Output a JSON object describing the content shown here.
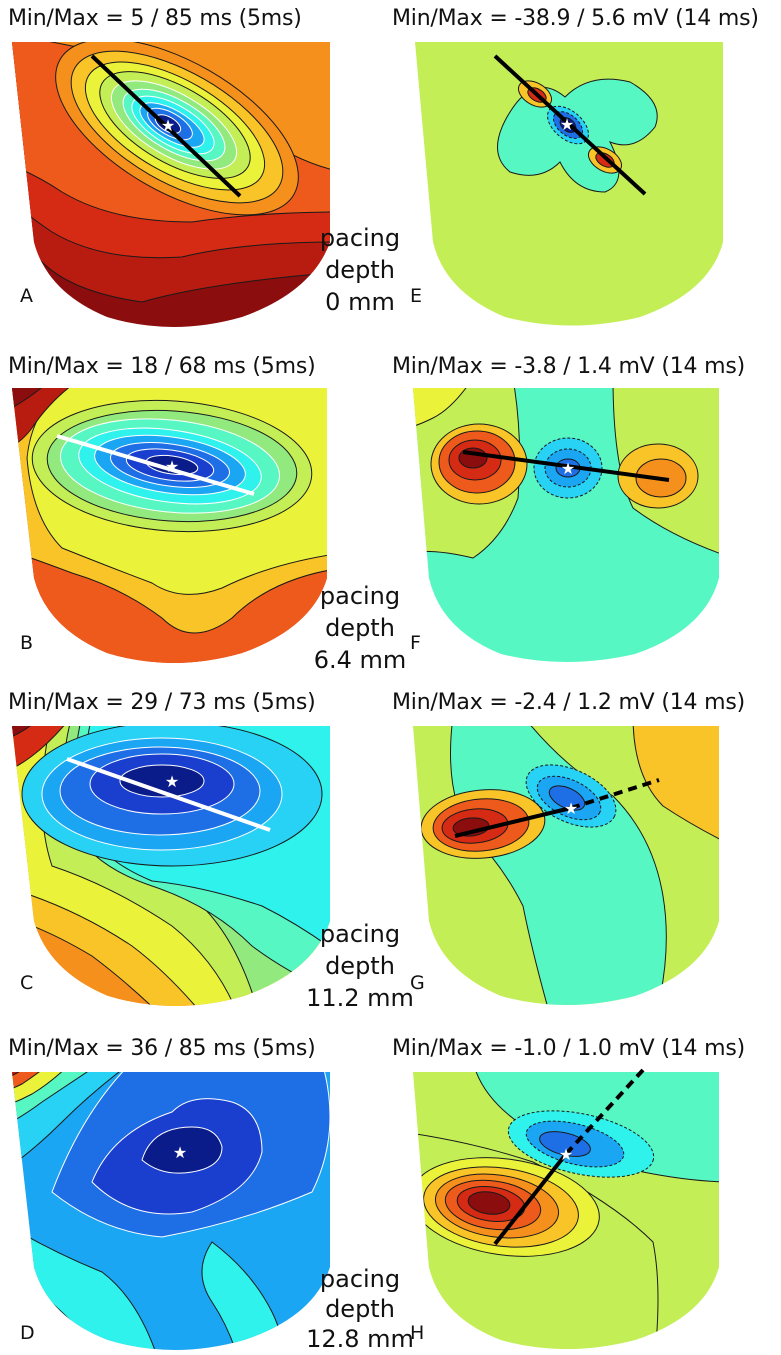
{
  "rows": [
    {
      "left": {
        "tag": "A",
        "title": "Min/Max = 5 / 85 ms (5ms)"
      },
      "right": {
        "tag": "E",
        "title": "Min/Max = -38.9 / 5.6 mV (14 ms)"
      },
      "depth": [
        "pacing",
        "depth",
        "0 mm"
      ]
    },
    {
      "left": {
        "tag": "B",
        "title": "Min/Max = 18 / 68 ms (5ms)"
      },
      "right": {
        "tag": "F",
        "title": "Min/Max = -3.8 / 1.4 mV (14 ms)"
      },
      "depth": [
        "pacing",
        "depth",
        "6.4 mm"
      ]
    },
    {
      "left": {
        "tag": "C",
        "title": "Min/Max = 29 / 73 ms (5ms)"
      },
      "right": {
        "tag": "G",
        "title": "Min/Max = -2.4 / 1.2 mV (14 ms)"
      },
      "depth": [
        "pacing",
        "depth",
        "11.2 mm"
      ]
    },
    {
      "left": {
        "tag": "D",
        "title": "Min/Max = 36 / 85 ms (5ms)"
      },
      "right": {
        "tag": "H",
        "title": "Min/Max = -1.0 / 1.0 mV (14 ms)"
      },
      "depth": [
        "pacing",
        "depth",
        "12.8 mm"
      ]
    }
  ],
  "colors": {
    "dark_red": "#8b0d0d",
    "red": "#d52a14",
    "orange_red": "#ee5a1b",
    "orange": "#f6901d",
    "yellow_orange": "#f8c427",
    "yellow": "#eaf23a",
    "yellow_green": "#c3ee56",
    "light_green": "#92ea7e",
    "mint": "#57f7c3",
    "aqua": "#2ff2ec",
    "cyan": "#27d2f5",
    "sky": "#1aa6f3",
    "blue": "#1e6fe6",
    "deep_blue": "#1a3fcf",
    "navy": "#0a1c8a"
  }
}
